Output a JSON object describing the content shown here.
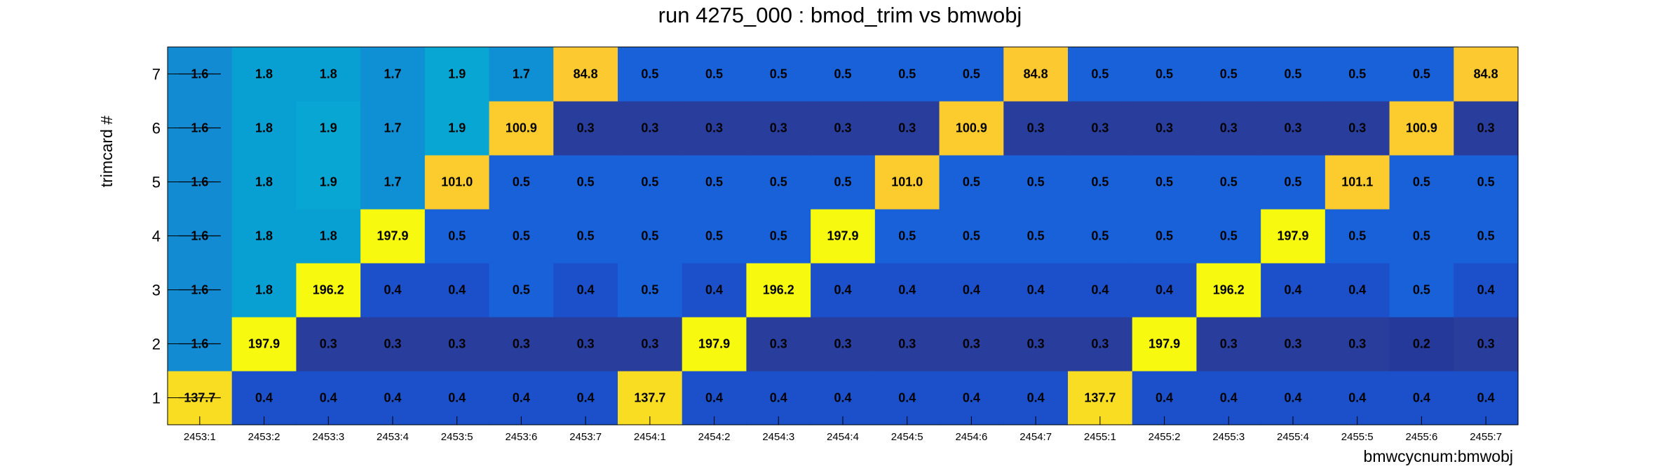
{
  "chart_data": {
    "type": "heatmap",
    "title": "run 4275_000 : bmod_trim vs bmwobj",
    "xlabel": "bmwcycnum:bmwobj",
    "ylabel": "trimcard #",
    "x_categories": [
      "2453:1",
      "2453:2",
      "2453:3",
      "2453:4",
      "2453:5",
      "2453:6",
      "2453:7",
      "2454:1",
      "2454:2",
      "2454:3",
      "2454:4",
      "2454:5",
      "2454:6",
      "2454:7",
      "2455:1",
      "2455:2",
      "2455:3",
      "2455:4",
      "2455:5",
      "2455:6",
      "2455:7"
    ],
    "y_categories": [
      "1",
      "2",
      "3",
      "4",
      "5",
      "6",
      "7"
    ],
    "value_labels": [
      [
        "137.7",
        "0.4",
        "0.4",
        "0.4",
        "0.4",
        "0.4",
        "0.4",
        "137.7",
        "0.4",
        "0.4",
        "0.4",
        "0.4",
        "0.4",
        "0.4",
        "137.7",
        "0.4",
        "0.4",
        "0.4",
        "0.4",
        "0.4",
        "0.4"
      ],
      [
        "1.6",
        "197.9",
        "0.3",
        "0.3",
        "0.3",
        "0.3",
        "0.3",
        "0.3",
        "197.9",
        "0.3",
        "0.3",
        "0.3",
        "0.3",
        "0.3",
        "0.3",
        "197.9",
        "0.3",
        "0.3",
        "0.3",
        "0.2",
        "0.3"
      ],
      [
        "1.6",
        "1.8",
        "196.2",
        "0.4",
        "0.4",
        "0.5",
        "0.4",
        "0.5",
        "0.4",
        "196.2",
        "0.4",
        "0.4",
        "0.4",
        "0.4",
        "0.4",
        "0.4",
        "196.2",
        "0.4",
        "0.4",
        "0.5",
        "0.4"
      ],
      [
        "1.6",
        "1.8",
        "1.8",
        "197.9",
        "0.5",
        "0.5",
        "0.5",
        "0.5",
        "0.5",
        "0.5",
        "197.9",
        "0.5",
        "0.5",
        "0.5",
        "0.5",
        "0.5",
        "0.5",
        "197.9",
        "0.5",
        "0.5",
        "0.5"
      ],
      [
        "1.6",
        "1.8",
        "1.9",
        "1.7",
        "101.0",
        "0.5",
        "0.5",
        "0.5",
        "0.5",
        "0.5",
        "0.5",
        "101.0",
        "0.5",
        "0.5",
        "0.5",
        "0.5",
        "0.5",
        "0.5",
        "101.1",
        "0.5",
        "0.5"
      ],
      [
        "1.6",
        "1.8",
        "1.9",
        "1.7",
        "1.9",
        "100.9",
        "0.3",
        "0.3",
        "0.3",
        "0.3",
        "0.3",
        "0.3",
        "100.9",
        "0.3",
        "0.3",
        "0.3",
        "0.3",
        "0.3",
        "0.3",
        "100.9",
        "0.3"
      ],
      [
        "1.6",
        "1.8",
        "1.8",
        "1.7",
        "1.9",
        "1.7",
        "84.8",
        "0.5",
        "0.5",
        "0.5",
        "0.5",
        "0.5",
        "0.5",
        "84.8",
        "0.5",
        "0.5",
        "0.5",
        "0.5",
        "0.5",
        "0.5",
        "84.8"
      ]
    ],
    "strikethrough_column": 0,
    "legend": "none",
    "grid": false,
    "color_scale": {
      "0.2": "#25399b",
      "0.3": "#283d9c",
      "0.4": "#1c4fca",
      "0.5": "#1861d9",
      "1.6": "#128bd2",
      "1.7": "#0f8fd4",
      "1.8": "#089fd2",
      "1.9": "#08a6d3",
      "84.8": "#fcca30",
      "100.9": "#fccc2e",
      "101.0": "#fccc2e",
      "101.1": "#fccc2e",
      "137.7": "#f9dd23",
      "196.2": "#f7f90f",
      "197.9": "#f7f90f"
    }
  }
}
